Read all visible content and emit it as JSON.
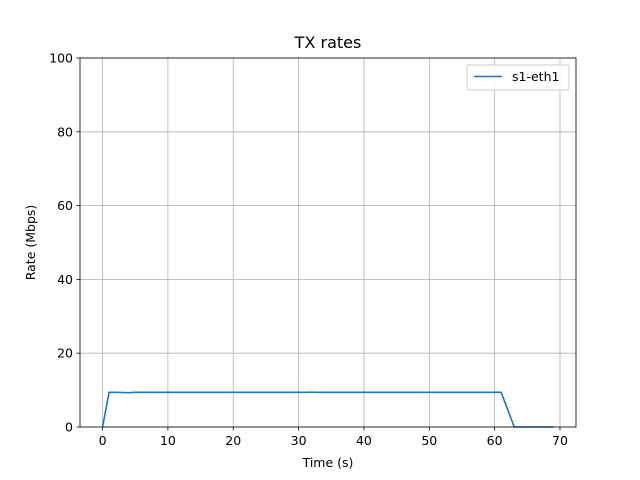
{
  "chart_data": {
    "type": "line",
    "title": "TX rates",
    "xlabel": "Time (s)",
    "ylabel": "Rate (Mbps)",
    "xlim": [
      -3.45,
      72.45
    ],
    "ylim": [
      0,
      100
    ],
    "xticks": [
      0,
      10,
      20,
      30,
      40,
      50,
      60,
      70
    ],
    "yticks": [
      0,
      20,
      40,
      60,
      80,
      100
    ],
    "grid": true,
    "legend_position": "top-right",
    "series": [
      {
        "name": "s1-eth1",
        "color": "#1f77b4",
        "x": [
          0,
          1,
          2,
          3,
          4,
          5,
          6,
          7,
          8,
          9,
          10,
          11,
          12,
          13,
          14,
          15,
          16,
          17,
          18,
          19,
          20,
          21,
          22,
          23,
          24,
          25,
          26,
          27,
          28,
          29,
          30,
          31,
          32,
          33,
          34,
          35,
          36,
          37,
          38,
          39,
          40,
          41,
          42,
          43,
          44,
          45,
          46,
          47,
          48,
          49,
          50,
          51,
          52,
          53,
          54,
          55,
          56,
          57,
          58,
          59,
          60,
          61,
          62,
          63,
          64,
          65,
          66,
          67,
          68,
          69
        ],
        "y": [
          0,
          9.4,
          9.4,
          9.35,
          9.3,
          9.4,
          9.4,
          9.4,
          9.4,
          9.4,
          9.4,
          9.4,
          9.4,
          9.4,
          9.4,
          9.4,
          9.4,
          9.4,
          9.4,
          9.4,
          9.4,
          9.4,
          9.4,
          9.4,
          9.4,
          9.4,
          9.4,
          9.4,
          9.4,
          9.4,
          9.4,
          9.4,
          9.45,
          9.4,
          9.4,
          9.4,
          9.4,
          9.4,
          9.4,
          9.4,
          9.4,
          9.4,
          9.4,
          9.4,
          9.4,
          9.4,
          9.4,
          9.4,
          9.4,
          9.4,
          9.4,
          9.4,
          9.4,
          9.4,
          9.4,
          9.4,
          9.4,
          9.4,
          9.4,
          9.4,
          9.4,
          9.4,
          4.7,
          0,
          0,
          0,
          0,
          0,
          0,
          0
        ]
      }
    ]
  }
}
